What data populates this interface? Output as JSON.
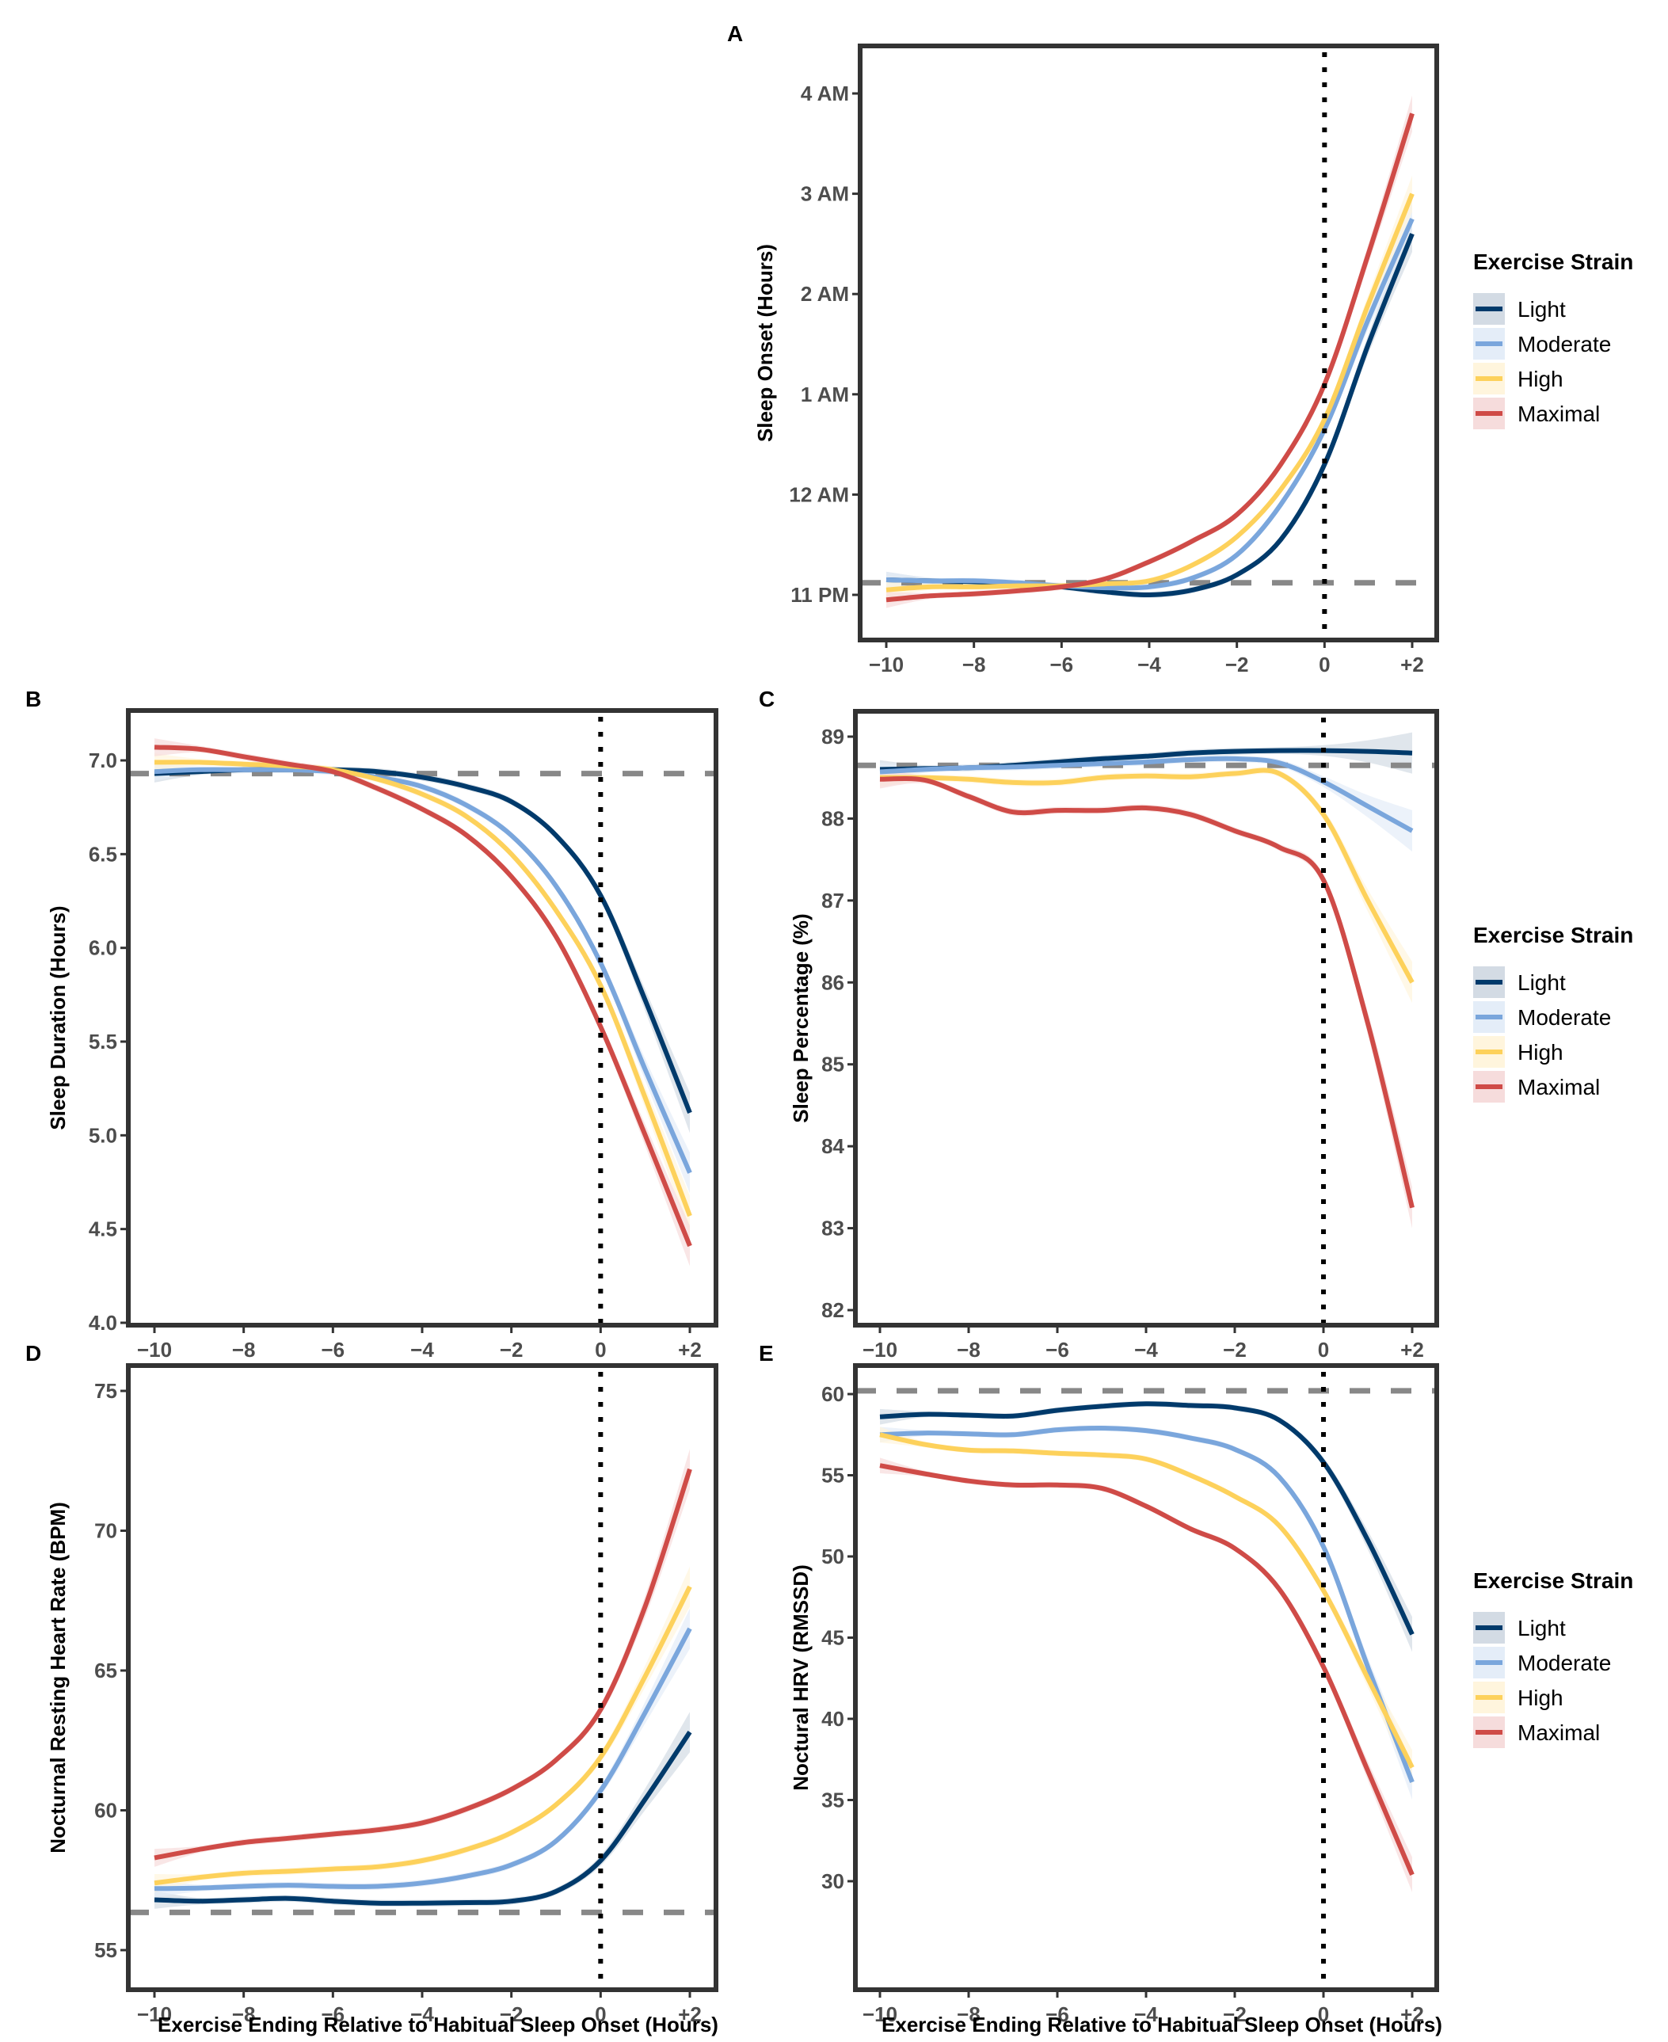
{
  "figure": {
    "legend": {
      "title": "Exercise Strain",
      "entries": [
        {
          "label": "Light",
          "color": "#003a6b",
          "ribbon": "#d3dbe4"
        },
        {
          "label": "Moderate",
          "color": "#7aa6dc",
          "ribbon": "#e4edf8"
        },
        {
          "label": "High",
          "color": "#fdd15b",
          "ribbon": "#fff5dd"
        },
        {
          "label": "Maximal",
          "color": "#cf4b47",
          "ribbon": "#f6dcdc"
        }
      ]
    },
    "reference_line_color": "#888888",
    "onset_line_color": "#000000"
  },
  "chart_data": [
    {
      "panel": "A",
      "type": "line",
      "title": "",
      "xlabel": "",
      "ylabel": "Sleep Onset (Hours)",
      "x": [
        -10,
        -9,
        -8,
        -7,
        -6,
        -5,
        -4,
        -3,
        -2,
        -1,
        0,
        1,
        2
      ],
      "x_tick_labels": [
        "−10",
        "−8",
        "−6",
        "−4",
        "−2",
        "0",
        "+2"
      ],
      "x_ticks": [
        -10,
        -8,
        -6,
        -4,
        -2,
        0,
        2
      ],
      "xlim": [
        -10.5,
        2.5
      ],
      "y_ticks": [
        23,
        24,
        25,
        26,
        27,
        28
      ],
      "y_tick_labels": [
        "11 PM",
        "12 AM",
        "1 AM",
        "2 AM",
        "3 AM",
        "4 AM"
      ],
      "ylim": [
        22.6,
        28.5
      ],
      "y_units": "clock hour (23 = 11 PM, 24 = 12 AM, 25 = 1 AM ...)",
      "reference_hline": 23.12,
      "vline": 0,
      "grid": false,
      "legend_position": "right",
      "series": [
        {
          "name": "Light",
          "values": [
            23.15,
            23.14,
            23.13,
            23.11,
            23.08,
            23.03,
            23.0,
            23.05,
            23.2,
            23.55,
            24.3,
            25.5,
            26.6
          ]
        },
        {
          "name": "Moderate",
          "values": [
            23.15,
            23.14,
            23.14,
            23.12,
            23.09,
            23.07,
            23.08,
            23.17,
            23.4,
            23.9,
            24.65,
            25.75,
            26.75
          ]
        },
        {
          "name": "High",
          "values": [
            23.05,
            23.08,
            23.08,
            23.09,
            23.09,
            23.11,
            23.14,
            23.3,
            23.58,
            24.05,
            24.75,
            25.9,
            27.0
          ]
        },
        {
          "name": "Maximal",
          "values": [
            22.95,
            22.99,
            23.01,
            23.04,
            23.08,
            23.16,
            23.33,
            23.54,
            23.8,
            24.3,
            25.1,
            26.4,
            27.8
          ]
        }
      ]
    },
    {
      "panel": "B",
      "type": "line",
      "xlabel": "",
      "ylabel": "Sleep Duration (Hours)",
      "x": [
        -10,
        -9,
        -8,
        -7,
        -6,
        -5,
        -4,
        -3,
        -2,
        -1,
        0,
        1,
        2
      ],
      "x_tick_labels": [
        "−10",
        "−8",
        "−6",
        "−4",
        "−2",
        "0",
        "+2"
      ],
      "x_ticks": [
        -10,
        -8,
        -6,
        -4,
        -2,
        0,
        2
      ],
      "xlim": [
        -10.5,
        2.5
      ],
      "y_ticks": [
        4.0,
        4.5,
        5.0,
        5.5,
        6.0,
        6.5,
        7.0
      ],
      "y_tick_labels": [
        "4.0",
        "4.5",
        "5.0",
        "5.5",
        "6.0",
        "6.5",
        "7.0"
      ],
      "ylim": [
        4.0,
        7.26
      ],
      "reference_hline": 6.93,
      "vline": 0,
      "grid": false,
      "series": [
        {
          "name": "Light",
          "values": [
            6.93,
            6.94,
            6.95,
            6.95,
            6.95,
            6.94,
            6.91,
            6.86,
            6.78,
            6.6,
            6.28,
            5.72,
            5.12
          ]
        },
        {
          "name": "Moderate",
          "values": [
            6.94,
            6.95,
            6.95,
            6.95,
            6.94,
            6.91,
            6.86,
            6.76,
            6.6,
            6.33,
            5.92,
            5.35,
            4.8
          ]
        },
        {
          "name": "High",
          "values": [
            6.99,
            6.99,
            6.98,
            6.97,
            6.95,
            6.9,
            6.82,
            6.7,
            6.5,
            6.2,
            5.8,
            5.2,
            4.57
          ]
        },
        {
          "name": "Maximal",
          "values": [
            7.07,
            7.06,
            7.02,
            6.98,
            6.94,
            6.85,
            6.74,
            6.6,
            6.38,
            6.06,
            5.58,
            5.0,
            4.41
          ]
        }
      ]
    },
    {
      "panel": "C",
      "type": "line",
      "xlabel": "",
      "ylabel": "Sleep Percentage (%)",
      "x": [
        -10,
        -9,
        -8,
        -7,
        -6,
        -5,
        -4,
        -3,
        -2,
        -1,
        0,
        1,
        2
      ],
      "x_tick_labels": [
        "−10",
        "−8",
        "−6",
        "−4",
        "−2",
        "0",
        "+2"
      ],
      "x_ticks": [
        -10,
        -8,
        -6,
        -4,
        -2,
        0,
        2
      ],
      "xlim": [
        -10.5,
        2.5
      ],
      "y_ticks": [
        82,
        83,
        84,
        85,
        86,
        87,
        88,
        89
      ],
      "y_tick_labels": [
        "82",
        "83",
        "84",
        "85",
        "86",
        "87",
        "88",
        "89"
      ],
      "ylim": [
        81.6,
        89.33
      ],
      "reference_hline": 88.65,
      "vline": 0,
      "grid": false,
      "legend_position": "right",
      "series": [
        {
          "name": "Light",
          "values": [
            88.6,
            88.61,
            88.62,
            88.65,
            88.69,
            88.73,
            88.76,
            88.8,
            88.82,
            88.83,
            88.83,
            88.82,
            88.8
          ]
        },
        {
          "name": "Moderate",
          "values": [
            88.57,
            88.6,
            88.62,
            88.63,
            88.65,
            88.67,
            88.69,
            88.72,
            88.73,
            88.68,
            88.45,
            88.15,
            87.85
          ]
        },
        {
          "name": "High",
          "values": [
            88.5,
            88.5,
            88.48,
            88.44,
            88.44,
            88.5,
            88.52,
            88.51,
            88.55,
            88.55,
            88.05,
            87.0,
            86.0
          ]
        },
        {
          "name": "Maximal",
          "values": [
            88.48,
            88.47,
            88.27,
            88.08,
            88.1,
            88.1,
            88.13,
            88.05,
            87.85,
            87.65,
            87.25,
            85.5,
            83.25
          ]
        }
      ]
    },
    {
      "panel": "D",
      "type": "line",
      "xlabel": "Exercise Ending Relative to Habitual Sleep Onset (Hours)",
      "ylabel": "Nocturnal Resting Heart Rate (BPM)",
      "x": [
        -10,
        -9,
        -8,
        -7,
        -6,
        -5,
        -4,
        -3,
        -2,
        -1,
        0,
        1,
        2
      ],
      "x_tick_labels": [
        "−10",
        "−8",
        "−6",
        "−4",
        "−2",
        "0",
        "+2"
      ],
      "x_ticks": [
        -10,
        -8,
        -6,
        -4,
        -2,
        0,
        2
      ],
      "xlim": [
        -10.5,
        2.5
      ],
      "y_ticks": [
        55,
        60,
        65,
        70,
        75
      ],
      "y_tick_labels": [
        "55",
        "60",
        "65",
        "70",
        "75"
      ],
      "ylim": [
        54.0,
        75.9
      ],
      "reference_hline": 56.35,
      "vline": 0,
      "grid": false,
      "series": [
        {
          "name": "Light",
          "values": [
            56.8,
            56.75,
            56.8,
            56.85,
            56.75,
            56.68,
            56.68,
            56.7,
            56.75,
            57.1,
            58.2,
            60.4,
            62.8
          ]
        },
        {
          "name": "Moderate",
          "values": [
            57.2,
            57.22,
            57.28,
            57.32,
            57.28,
            57.28,
            57.4,
            57.65,
            58.05,
            58.9,
            60.7,
            63.5,
            66.5
          ]
        },
        {
          "name": "High",
          "values": [
            57.4,
            57.6,
            57.75,
            57.82,
            57.9,
            57.98,
            58.2,
            58.6,
            59.2,
            60.2,
            61.9,
            64.8,
            68.0
          ]
        },
        {
          "name": "Maximal",
          "values": [
            58.3,
            58.6,
            58.85,
            59.0,
            59.15,
            59.3,
            59.55,
            60.05,
            60.75,
            61.8,
            63.6,
            67.3,
            72.2
          ]
        }
      ]
    },
    {
      "panel": "E",
      "type": "line",
      "xlabel": "Exercise Ending Relative to Habitual Sleep Onset (Hours)",
      "ylabel": "Noctural HRV (RMSSD)",
      "x": [
        -10,
        -9,
        -8,
        -7,
        -6,
        -5,
        -4,
        -3,
        -2,
        -1,
        0,
        1,
        2
      ],
      "x_tick_labels": [
        "−10",
        "−8",
        "−6",
        "−4",
        "−2",
        "0",
        "+2"
      ],
      "x_ticks": [
        -10,
        -8,
        -6,
        -4,
        -2,
        0,
        2
      ],
      "xlim": [
        -10.5,
        2.5
      ],
      "y_ticks": [
        30,
        35,
        40,
        45,
        50,
        55,
        60
      ],
      "y_tick_labels": [
        "30",
        "35",
        "40",
        "45",
        "50",
        "55",
        "60"
      ],
      "ylim": [
        25.2,
        61.9
      ],
      "reference_hline": 60.2,
      "vline": 0,
      "grid": false,
      "legend_position": "right",
      "series": [
        {
          "name": "Light",
          "values": [
            58.6,
            58.75,
            58.7,
            58.65,
            59.0,
            59.25,
            59.4,
            59.3,
            59.15,
            58.4,
            55.8,
            51.0,
            45.2
          ]
        },
        {
          "name": "Moderate",
          "values": [
            57.5,
            57.6,
            57.55,
            57.5,
            57.8,
            57.9,
            57.75,
            57.3,
            56.6,
            54.9,
            50.6,
            43.2,
            36.1
          ]
        },
        {
          "name": "High",
          "values": [
            57.5,
            56.9,
            56.55,
            56.5,
            56.35,
            56.25,
            56.0,
            55.0,
            53.7,
            51.9,
            47.9,
            42.5,
            37.0
          ]
        },
        {
          "name": "Maximal",
          "values": [
            55.6,
            55.1,
            54.65,
            54.4,
            54.4,
            54.2,
            53.1,
            51.7,
            50.5,
            48.0,
            43.2,
            36.8,
            30.4
          ]
        }
      ]
    }
  ]
}
